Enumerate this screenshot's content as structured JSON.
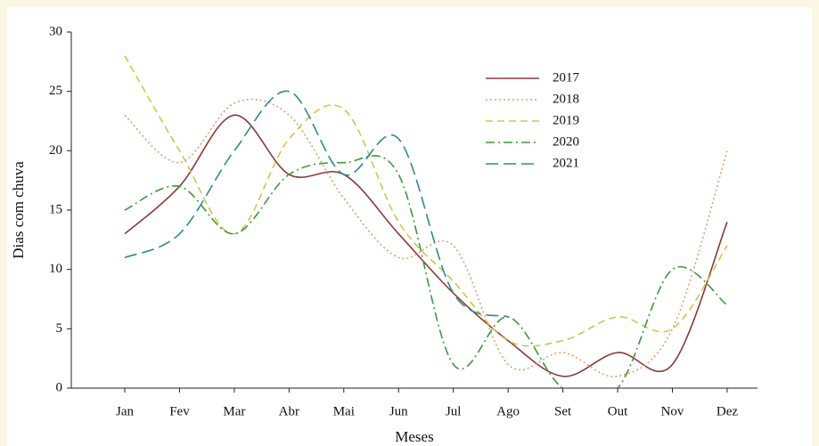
{
  "chart_data": {
    "type": "line",
    "x_label": "Meses",
    "y_label": "Dias com chuva",
    "categories": [
      "Jan",
      "Fev",
      "Mar",
      "Abr",
      "Mai",
      "Jun",
      "Jul",
      "Ago",
      "Set",
      "Out",
      "Nov",
      "Dez"
    ],
    "ylim": [
      0,
      30
    ],
    "yticks": [
      0,
      5,
      10,
      15,
      20,
      25,
      30
    ],
    "grid": false,
    "smooth": true,
    "legend": "top",
    "series": [
      {
        "name": "2017",
        "color": "#8b3a3a",
        "dash": "none",
        "values": [
          13,
          17,
          23,
          18,
          18,
          13,
          8,
          4,
          1,
          3,
          2,
          14
        ]
      },
      {
        "name": "2018",
        "color": "#dfa06a",
        "dash": "2,3",
        "values": [
          23,
          19,
          24,
          23,
          16,
          11,
          12,
          2,
          3,
          1,
          5,
          20
        ]
      },
      {
        "name": "2019",
        "color": "#c9c84a",
        "dash": "8,5",
        "values": [
          28,
          20,
          13,
          21,
          23.5,
          14,
          9,
          4,
          4,
          6,
          5,
          12
        ]
      },
      {
        "name": "2020",
        "color": "#3a9a3a",
        "dash": "10,4,2,4",
        "values": [
          15,
          17,
          13,
          18,
          19,
          18,
          2,
          6,
          0,
          0,
          10,
          7
        ]
      },
      {
        "name": "2021",
        "color": "#2e8b8b",
        "dash": "14,6",
        "values": [
          11,
          13,
          20,
          25,
          18,
          21,
          8,
          6,
          null,
          null,
          null,
          null
        ]
      }
    ]
  }
}
